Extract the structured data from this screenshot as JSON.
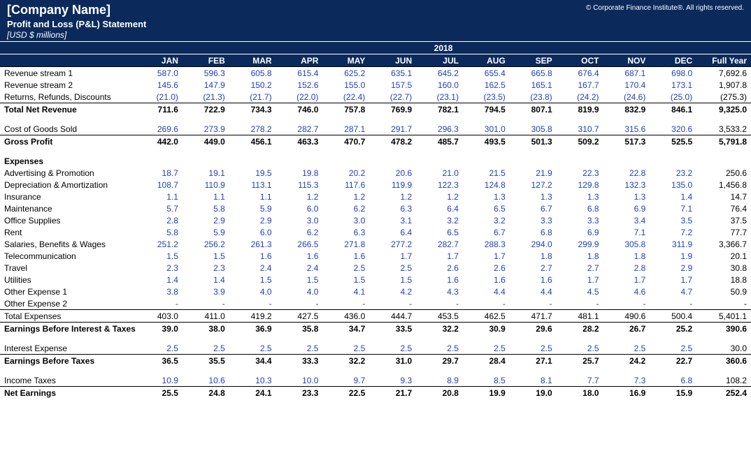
{
  "header": {
    "company": "[Company Name]",
    "subtitle": "Profit and Loss (P&L) Statement",
    "unit": "[USD $ millions]",
    "copyright": "© Corporate Finance Institute®. All rights reserved."
  },
  "year": "2018",
  "months": [
    "JAN",
    "FEB",
    "MAR",
    "APR",
    "MAY",
    "JUN",
    "JUL",
    "AUG",
    "SEP",
    "OCT",
    "NOV",
    "DEC"
  ],
  "fy": "Full Year",
  "rows": [
    {
      "l": "Revenue stream 1",
      "v": [
        "587.0",
        "596.3",
        "605.8",
        "615.4",
        "625.2",
        "635.1",
        "645.2",
        "655.4",
        "665.8",
        "676.4",
        "687.1",
        "698.0"
      ],
      "t": "7,692.6"
    },
    {
      "l": "Revenue stream 2",
      "v": [
        "145.6",
        "147.9",
        "150.2",
        "152.6",
        "155.0",
        "157.5",
        "160.0",
        "162.5",
        "165.1",
        "167.7",
        "170.4",
        "173.1"
      ],
      "t": "1,907.8"
    },
    {
      "l": "Returns, Refunds, Discounts",
      "v": [
        "(21.0)",
        "(21.3)",
        "(21.7)",
        "(22.0)",
        "(22.4)",
        "(22.7)",
        "(23.1)",
        "(23.5)",
        "(23.8)",
        "(24.2)",
        "(24.6)",
        "(25.0)"
      ],
      "t": "(275.3)"
    },
    {
      "l": "Total Net Revenue",
      "v": [
        "711.6",
        "722.9",
        "734.3",
        "746.0",
        "757.8",
        "769.9",
        "782.1",
        "794.5",
        "807.1",
        "819.9",
        "832.9",
        "846.1"
      ],
      "t": "9,325.0",
      "b": 1,
      "tl": 1
    },
    {
      "sep": 1
    },
    {
      "l": "Cost of Goods Sold",
      "v": [
        "269.6",
        "273.9",
        "278.2",
        "282.7",
        "287.1",
        "291.7",
        "296.3",
        "301.0",
        "305.8",
        "310.7",
        "315.6",
        "320.6"
      ],
      "t": "3,533.2"
    },
    {
      "l": "Gross Profit",
      "v": [
        "442.0",
        "449.0",
        "456.1",
        "463.3",
        "470.7",
        "478.2",
        "485.7",
        "493.5",
        "501.3",
        "509.2",
        "517.3",
        "525.5"
      ],
      "t": "5,791.8",
      "b": 1,
      "tl": 1
    },
    {
      "sep": 1
    },
    {
      "l": "Expenses",
      "hdr": 1
    },
    {
      "l": "Advertising & Promotion",
      "v": [
        "18.7",
        "19.1",
        "19.5",
        "19.8",
        "20.2",
        "20.6",
        "21.0",
        "21.5",
        "21.9",
        "22.3",
        "22.8",
        "23.2"
      ],
      "t": "250.6"
    },
    {
      "l": "Depreciation & Amortization",
      "v": [
        "108.7",
        "110.9",
        "113.1",
        "115.3",
        "117.6",
        "119.9",
        "122.3",
        "124.8",
        "127.2",
        "129.8",
        "132.3",
        "135.0"
      ],
      "t": "1,456.8"
    },
    {
      "l": "Insurance",
      "v": [
        "1.1",
        "1.1",
        "1.1",
        "1.2",
        "1.2",
        "1.2",
        "1.2",
        "1.3",
        "1.3",
        "1.3",
        "1.3",
        "1.4"
      ],
      "t": "14.7"
    },
    {
      "l": "Maintenance",
      "v": [
        "5.7",
        "5.8",
        "5.9",
        "6.0",
        "6.2",
        "6.3",
        "6.4",
        "6.5",
        "6.7",
        "6.8",
        "6.9",
        "7.1"
      ],
      "t": "76.4"
    },
    {
      "l": "Office Supplies",
      "v": [
        "2.8",
        "2.9",
        "2.9",
        "3.0",
        "3.0",
        "3.1",
        "3.2",
        "3.2",
        "3.3",
        "3.3",
        "3.4",
        "3.5"
      ],
      "t": "37.5"
    },
    {
      "l": "Rent",
      "v": [
        "5.8",
        "5.9",
        "6.0",
        "6.2",
        "6.3",
        "6.4",
        "6.5",
        "6.7",
        "6.8",
        "6.9",
        "7.1",
        "7.2"
      ],
      "t": "77.7"
    },
    {
      "l": "Salaries, Benefits & Wages",
      "v": [
        "251.2",
        "256.2",
        "261.3",
        "266.5",
        "271.8",
        "277.2",
        "282.7",
        "288.3",
        "294.0",
        "299.9",
        "305.8",
        "311.9"
      ],
      "t": "3,366.7"
    },
    {
      "l": "Telecommunication",
      "v": [
        "1.5",
        "1.5",
        "1.6",
        "1.6",
        "1.6",
        "1.7",
        "1.7",
        "1.7",
        "1.8",
        "1.8",
        "1.8",
        "1.9"
      ],
      "t": "20.1"
    },
    {
      "l": "Travel",
      "v": [
        "2.3",
        "2.3",
        "2.4",
        "2.4",
        "2.5",
        "2.5",
        "2.6",
        "2.6",
        "2.7",
        "2.7",
        "2.8",
        "2.9"
      ],
      "t": "30.8"
    },
    {
      "l": "Utilities",
      "v": [
        "1.4",
        "1.4",
        "1.5",
        "1.5",
        "1.5",
        "1.5",
        "1.6",
        "1.6",
        "1.6",
        "1.7",
        "1.7",
        "1.7"
      ],
      "t": "18.8"
    },
    {
      "l": "Other Expense 1",
      "v": [
        "3.8",
        "3.9",
        "4.0",
        "4.0",
        "4.1",
        "4.2",
        "4.3",
        "4.4",
        "4.4",
        "4.5",
        "4.6",
        "4.7"
      ],
      "t": "50.9"
    },
    {
      "l": "Other Expense 2",
      "v": [
        "-",
        "-",
        "-",
        "-",
        "-",
        "-",
        "-",
        "-",
        "-",
        "-",
        "-",
        "-"
      ],
      "t": "-"
    },
    {
      "l": "Total Expenses",
      "v": [
        "403.0",
        "411.0",
        "419.2",
        "427.5",
        "436.0",
        "444.7",
        "453.5",
        "462.5",
        "471.7",
        "481.1",
        "490.6",
        "500.4"
      ],
      "t": "5,401.1",
      "tl": 1,
      "blk": 1
    },
    {
      "l": "Earnings Before Interest & Taxes",
      "v": [
        "39.0",
        "38.0",
        "36.9",
        "35.8",
        "34.7",
        "33.5",
        "32.2",
        "30.9",
        "29.6",
        "28.2",
        "26.7",
        "25.2"
      ],
      "t": "390.6",
      "b": 1,
      "tl": 1
    },
    {
      "sep": 1
    },
    {
      "l": "Interest Expense",
      "v": [
        "2.5",
        "2.5",
        "2.5",
        "2.5",
        "2.5",
        "2.5",
        "2.5",
        "2.5",
        "2.5",
        "2.5",
        "2.5",
        "2.5"
      ],
      "t": "30.0"
    },
    {
      "l": "Earnings Before Taxes",
      "v": [
        "36.5",
        "35.5",
        "34.4",
        "33.3",
        "32.2",
        "31.0",
        "29.7",
        "28.4",
        "27.1",
        "25.7",
        "24.2",
        "22.7"
      ],
      "t": "360.6",
      "b": 1,
      "tl": 1
    },
    {
      "sep": 1
    },
    {
      "l": "Income Taxes",
      "v": [
        "10.9",
        "10.6",
        "10.3",
        "10.0",
        "9.7",
        "9.3",
        "8.9",
        "8.5",
        "8.1",
        "7.7",
        "7.3",
        "6.8"
      ],
      "t": "108.2"
    },
    {
      "l": "Net Earnings",
      "v": [
        "25.5",
        "24.8",
        "24.1",
        "23.3",
        "22.5",
        "21.7",
        "20.8",
        "19.9",
        "19.0",
        "18.0",
        "16.9",
        "15.9"
      ],
      "t": "252.4",
      "b": 1,
      "tl": 1
    }
  ]
}
